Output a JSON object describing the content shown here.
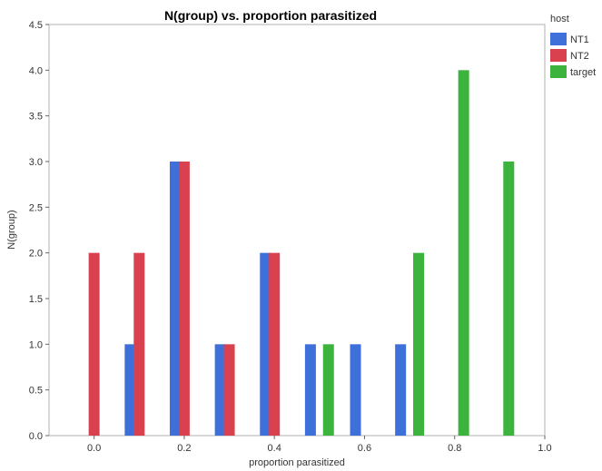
{
  "chart_data": {
    "type": "bar",
    "title": "N(group) vs. proportion parasitized",
    "xlabel": "proportion parasitized",
    "ylabel": "N(group)",
    "xlim": [
      -0.1,
      1.0
    ],
    "ylim": [
      0,
      4.5
    ],
    "x_ticks": [
      "0.0",
      "0.2",
      "0.4",
      "0.6",
      "0.8",
      "1.0"
    ],
    "y_ticks": [
      "0.0",
      "0.5",
      "1.0",
      "1.5",
      "2.0",
      "2.5",
      "3.0",
      "3.5",
      "4.0",
      "4.5"
    ],
    "grid": false,
    "legend": {
      "title": "host",
      "position": "right"
    },
    "series": [
      {
        "name": "NT1",
        "color": "#3f6fd8",
        "points": [
          {
            "x": 0.08,
            "y": 1
          },
          {
            "x": 0.18,
            "y": 3
          },
          {
            "x": 0.28,
            "y": 1
          },
          {
            "x": 0.38,
            "y": 2
          },
          {
            "x": 0.48,
            "y": 1
          },
          {
            "x": 0.58,
            "y": 1
          },
          {
            "x": 0.68,
            "y": 1
          }
        ]
      },
      {
        "name": "NT2",
        "color": "#d9414f",
        "points": [
          {
            "x": 0.0,
            "y": 2
          },
          {
            "x": 0.1,
            "y": 2
          },
          {
            "x": 0.2,
            "y": 3
          },
          {
            "x": 0.3,
            "y": 1
          },
          {
            "x": 0.4,
            "y": 2
          }
        ]
      },
      {
        "name": "target",
        "color": "#3cb33c",
        "points": [
          {
            "x": 0.52,
            "y": 1
          },
          {
            "x": 0.72,
            "y": 2
          },
          {
            "x": 0.82,
            "y": 4
          },
          {
            "x": 0.92,
            "y": 3
          }
        ]
      }
    ]
  }
}
